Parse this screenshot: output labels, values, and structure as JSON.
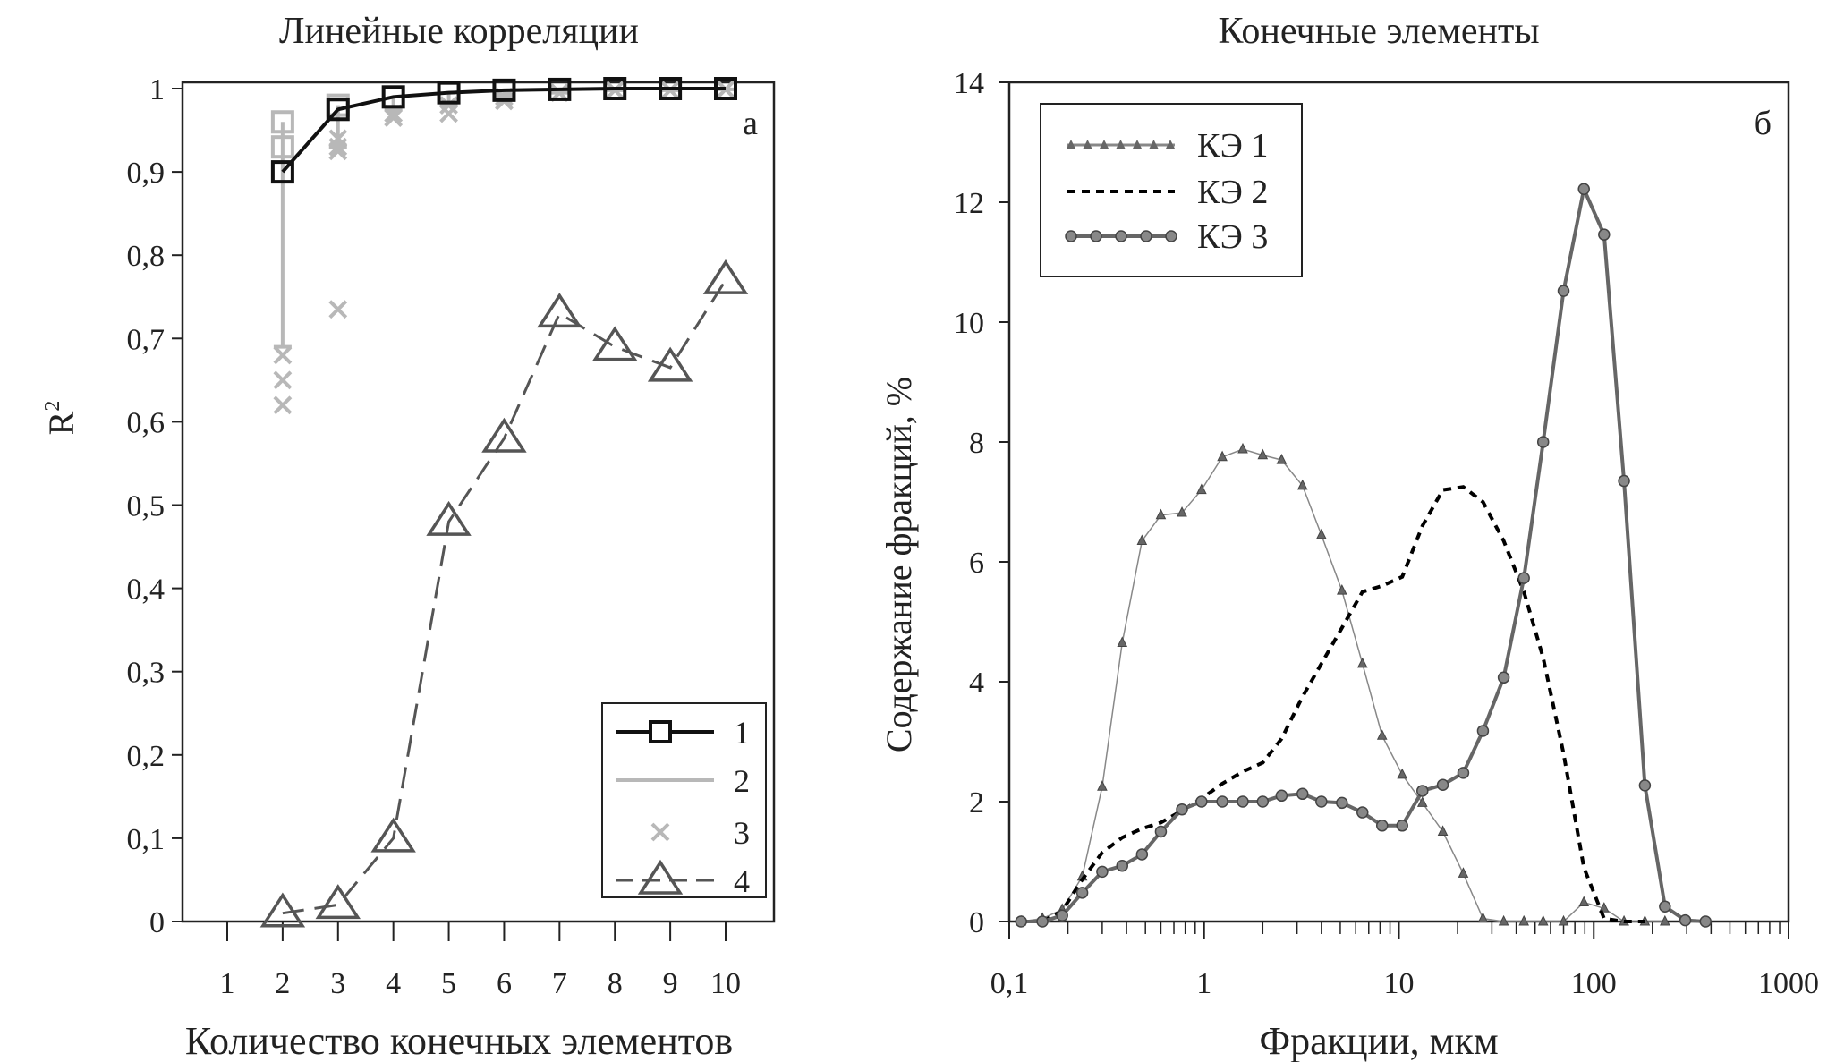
{
  "chart_data": [
    {
      "type": "line",
      "panel_label": "а",
      "title": "Линейные корреляции",
      "xlabel": "Количество конечных элементов",
      "ylabel": "R",
      "ylabel_sup": "2",
      "xlim": [
        0,
        10.9
      ],
      "ylim": [
        0,
        1
      ],
      "x_ticks": [
        "1",
        "2",
        "3",
        "4",
        "5",
        "6",
        "7",
        "8",
        "9",
        "10"
      ],
      "y_ticks": [
        "0",
        "0,1",
        "0,2",
        "0,3",
        "0,4",
        "0,5",
        "0,6",
        "0,7",
        "0,8",
        "0,9",
        "1"
      ],
      "legend_placement": "bottom-right",
      "series": [
        {
          "name": "1",
          "style": "black-line-square",
          "color": "#111111",
          "x": [
            2,
            3,
            4,
            5,
            6,
            7,
            8,
            9,
            10
          ],
          "y": [
            0.9,
            0.975,
            0.99,
            0.995,
            0.998,
            0.999,
            1.0,
            1.0,
            1.0
          ]
        },
        {
          "name": "2",
          "style": "gray-range",
          "color": "#b8b8b8",
          "x": [
            2,
            3,
            4,
            5,
            6,
            7,
            8,
            9,
            10
          ],
          "ymin": [
            0.69,
            0.93,
            0.975,
            0.98,
            0.99,
            0.995,
            0.998,
            0.998,
            0.999
          ],
          "ymax": [
            0.96,
            0.98,
            0.99,
            0.995,
            0.998,
            0.999,
            1.0,
            1.0,
            1.0
          ],
          "markers": [
            [
              2,
              0.96
            ],
            [
              2,
              0.93
            ],
            [
              3,
              0.98
            ]
          ]
        },
        {
          "name": "3",
          "style": "gray-cross",
          "color": "#b8b8b8",
          "points": [
            [
              2,
              0.68
            ],
            [
              2,
              0.65
            ],
            [
              2,
              0.62
            ],
            [
              3,
              0.735
            ],
            [
              3,
              0.94
            ],
            [
              3,
              0.93
            ],
            [
              3,
              0.925
            ],
            [
              4,
              0.965
            ],
            [
              4,
              0.97
            ],
            [
              5,
              0.97
            ],
            [
              5,
              0.98
            ],
            [
              6,
              0.985
            ],
            [
              6,
              0.99
            ],
            [
              7,
              0.995
            ],
            [
              8,
              0.998
            ],
            [
              9,
              0.998
            ],
            [
              10,
              0.999
            ]
          ]
        },
        {
          "name": "4",
          "style": "dashed-triangle",
          "color": "#555555",
          "x": [
            2,
            3,
            4,
            5,
            6,
            7,
            8,
            9,
            10
          ],
          "y": [
            0.01,
            0.02,
            0.1,
            0.48,
            0.58,
            0.73,
            0.69,
            0.665,
            0.77
          ]
        }
      ]
    },
    {
      "type": "line",
      "panel_label": "б",
      "title": "Конечные элементы",
      "xlabel": "Фракции, мкм",
      "ylabel": "Содержание фракций, %",
      "xscale": "log",
      "xlim": [
        0.1,
        1000
      ],
      "ylim": [
        0,
        14
      ],
      "x_ticks": [
        "0,1",
        "1",
        "10",
        "100",
        "1000"
      ],
      "y_ticks": [
        "0",
        "2",
        "4",
        "6",
        "8",
        "10",
        "12",
        "14"
      ],
      "legend_placement": "top-left",
      "x": [
        0.115,
        0.148,
        0.187,
        0.237,
        0.3,
        0.38,
        0.48,
        0.6,
        0.77,
        0.97,
        1.24,
        1.58,
        2.0,
        2.5,
        3.2,
        4.0,
        5.1,
        6.5,
        8.2,
        10.4,
        13.2,
        16.8,
        21.4,
        27,
        34.5,
        43.8,
        55,
        70,
        89,
        113,
        143,
        183,
        232,
        295,
        375
      ],
      "series": [
        {
          "name": "КЭ 1",
          "style": "thin-line-triangle",
          "color": "#666666",
          "y": [
            0,
            0.05,
            0.2,
            0.75,
            2.25,
            4.65,
            6.35,
            6.78,
            6.82,
            7.2,
            7.75,
            7.88,
            7.78,
            7.7,
            7.27,
            6.45,
            5.52,
            4.3,
            3.1,
            2.45,
            1.98,
            1.5,
            0.8,
            0.05,
            0,
            0,
            0,
            0,
            0.32,
            0.22,
            0,
            0,
            0,
            null,
            null
          ]
        },
        {
          "name": "КЭ 2",
          "style": "dotted",
          "color": "#000000",
          "y": [
            null,
            0,
            0.18,
            0.7,
            1.15,
            1.4,
            1.55,
            1.65,
            1.85,
            2.05,
            2.3,
            2.5,
            2.65,
            3.05,
            3.75,
            4.3,
            4.9,
            5.5,
            5.6,
            5.75,
            6.6,
            7.2,
            7.25,
            7.0,
            6.35,
            5.5,
            4.4,
            2.8,
            0.9,
            0.05,
            0,
            0,
            null,
            null,
            null
          ]
        },
        {
          "name": "КЭ 3",
          "style": "line-circle",
          "color": "#666666",
          "y": [
            0,
            0,
            0.1,
            0.48,
            0.83,
            0.93,
            1.12,
            1.5,
            1.87,
            2.0,
            2.0,
            2.0,
            2.0,
            2.1,
            2.13,
            2.0,
            1.98,
            1.82,
            1.6,
            1.6,
            2.18,
            2.28,
            2.48,
            3.18,
            4.07,
            5.73,
            8.0,
            10.52,
            12.22,
            11.46,
            7.35,
            2.27,
            0.25,
            0.02,
            0
          ]
        }
      ]
    }
  ]
}
